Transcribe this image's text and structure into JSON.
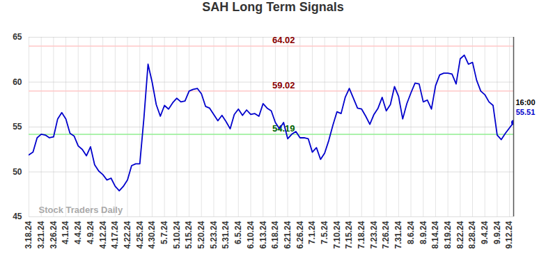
{
  "chart_data": {
    "type": "line",
    "title": "SAH Long Term Signals",
    "x": [
      "3.18.24",
      null,
      null,
      "3.21.24",
      null,
      null,
      "3.26.24",
      null,
      null,
      "4.1.24",
      null,
      null,
      "4.4.24",
      null,
      null,
      "4.9.24",
      null,
      null,
      "4.12.24",
      null,
      null,
      "4.17.24",
      null,
      null,
      "4.22.24",
      null,
      null,
      "4.25.24",
      null,
      null,
      "4.30.24",
      null,
      null,
      "5.7.24",
      null,
      null,
      "5.10.24",
      null,
      null,
      "5.15.24",
      null,
      null,
      "5.20.24",
      null,
      null,
      "5.23.24",
      null,
      null,
      "5.31.24",
      null,
      null,
      "6.5.24",
      null,
      null,
      "6.10.24",
      null,
      null,
      "6.13.24",
      null,
      null,
      "6.18.24",
      null,
      null,
      "6.21.24",
      null,
      null,
      "6.26.24",
      null,
      null,
      "7.1.24",
      null,
      null,
      "7.5.24",
      null,
      null,
      "7.10.24",
      null,
      null,
      "7.15.24",
      null,
      null,
      "7.18.24",
      null,
      null,
      "7.23.24",
      null,
      null,
      "7.26.24",
      null,
      null,
      "7.31.24",
      null,
      null,
      "8.6.24",
      null,
      null,
      "8.9.24",
      null,
      null,
      "8.14.24",
      null,
      null,
      "8.19.24",
      null,
      null,
      "8.22.24",
      null,
      null,
      "8.28.24",
      null,
      null,
      "9.4.24",
      null,
      null,
      "9.9.24",
      null,
      null,
      "9.12.24",
      null
    ],
    "values": [
      51.9,
      52.2,
      53.8,
      54.2,
      54.1,
      53.8,
      53.9,
      55.9,
      56.6,
      55.9,
      54.3,
      54.0,
      52.9,
      52.5,
      51.8,
      52.8,
      50.8,
      50.1,
      49.7,
      49.1,
      49.3,
      48.4,
      47.9,
      48.4,
      49.1,
      50.7,
      50.9,
      50.9,
      56.0,
      62.0,
      60.0,
      57.5,
      56.2,
      57.4,
      57.0,
      57.7,
      58.2,
      57.8,
      57.9,
      59.0,
      59.2,
      59.3,
      58.7,
      57.3,
      57.1,
      56.4,
      55.7,
      56.3,
      55.6,
      54.8,
      56.4,
      57.0,
      56.3,
      56.9,
      56.4,
      56.5,
      56.2,
      57.6,
      57.1,
      56.8,
      55.5,
      54.8,
      55.5,
      53.7,
      54.2,
      54.5,
      53.8,
      53.8,
      53.7,
      52.2,
      52.7,
      51.4,
      52.1,
      53.5,
      55.2,
      56.7,
      56.5,
      58.3,
      59.3,
      58.2,
      57.1,
      57.0,
      56.2,
      55.3,
      56.4,
      57.1,
      58.3,
      56.8,
      57.5,
      59.5,
      58.4,
      55.9,
      57.6,
      58.8,
      59.9,
      59.8,
      57.8,
      58.0,
      57.0,
      59.6,
      60.8,
      61.0,
      61.0,
      60.9,
      59.8,
      62.6,
      63.0,
      62.0,
      62.2,
      60.2,
      59.0,
      58.6,
      57.8,
      57.4,
      54.1,
      53.6,
      54.3,
      54.9,
      55.51
    ],
    "color": "#0000cc",
    "ylim": [
      45,
      65
    ],
    "yticks": [
      45,
      50,
      55,
      60,
      65
    ],
    "grid": true,
    "annotations": {
      "levels": [
        {
          "value": 64.02,
          "label": "64.02",
          "color": "#ffc8c8",
          "text_color": "#8b0000"
        },
        {
          "value": 59.02,
          "label": "59.02",
          "color": "#ffc8c8",
          "text_color": "#8b0000"
        },
        {
          "value": 54.19,
          "label": "54.19",
          "color": "#90ee90",
          "text_color": "#006400"
        }
      ],
      "last": {
        "label": "16:00",
        "value": 55.51
      },
      "watermark": "Stock Traders Daily"
    }
  }
}
